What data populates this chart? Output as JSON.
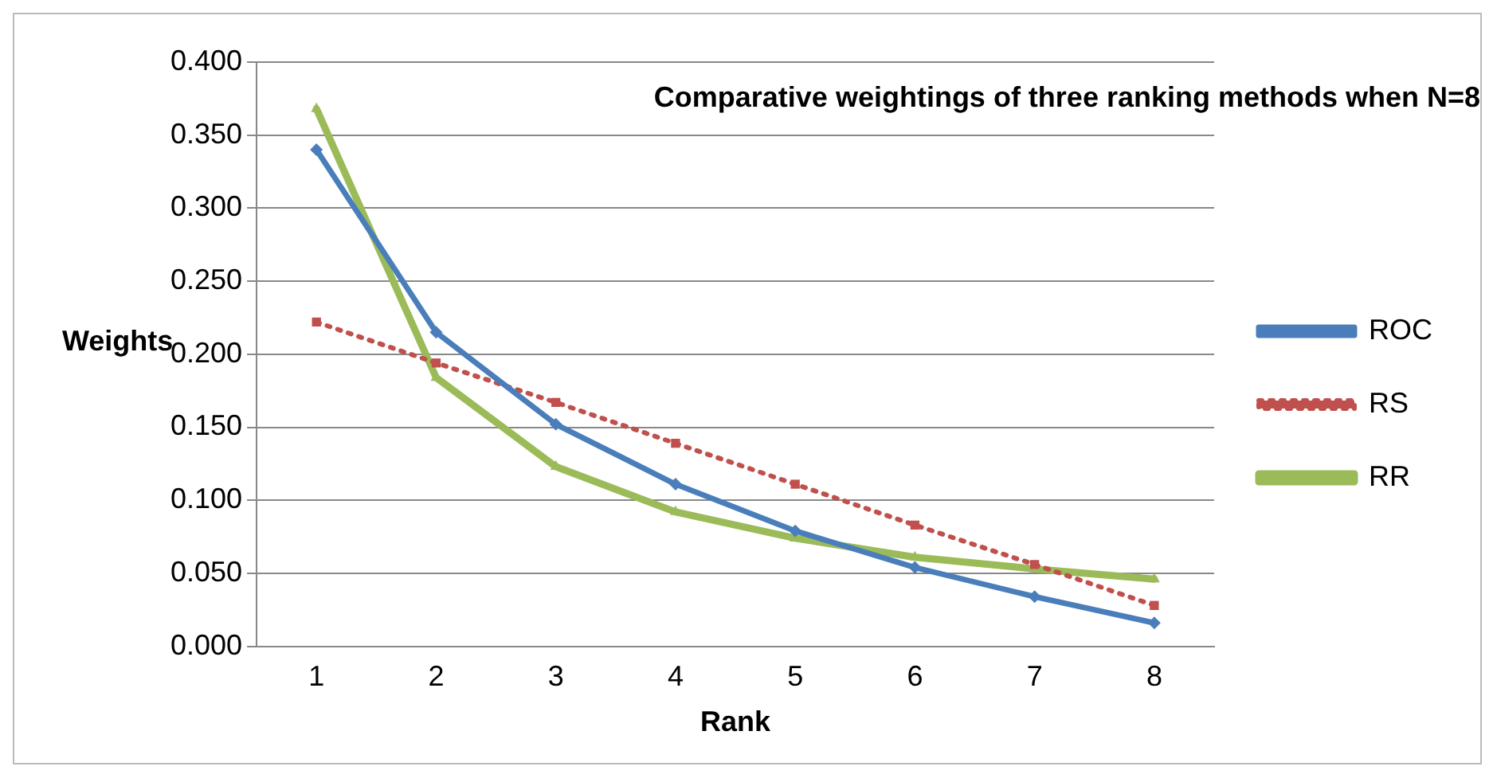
{
  "chart_data": {
    "type": "line",
    "title": "Comparative weightings of three ranking methods when N=8",
    "xlabel": "Rank",
    "ylabel": "Weights",
    "categories": [
      "1",
      "2",
      "3",
      "4",
      "5",
      "6",
      "7",
      "8"
    ],
    "series": [
      {
        "name": "ROC",
        "color": "#4a7ebb",
        "marker": "diamond",
        "line_style": "solid",
        "values": [
          0.34,
          0.215,
          0.152,
          0.111,
          0.079,
          0.054,
          0.034,
          0.016
        ]
      },
      {
        "name": "RS",
        "color": "#c0504d",
        "marker": "square",
        "line_style": "dotted",
        "values": [
          0.222,
          0.194,
          0.167,
          0.139,
          0.111,
          0.083,
          0.056,
          0.028
        ]
      },
      {
        "name": "RR",
        "color": "#9bbb59",
        "marker": "triangle",
        "line_style": "solid",
        "values": [
          0.368,
          0.184,
          0.123,
          0.092,
          0.074,
          0.061,
          0.053,
          0.046
        ]
      }
    ],
    "ylim": [
      0,
      0.4
    ],
    "yticks": [
      {
        "value": 0,
        "label": "0.000"
      },
      {
        "value": 0.05,
        "label": "0.050"
      },
      {
        "value": 0.1,
        "label": "0.100"
      },
      {
        "value": 0.15,
        "label": "0.150"
      },
      {
        "value": 0.2,
        "label": "0.200"
      },
      {
        "value": 0.25,
        "label": "0.250"
      },
      {
        "value": 0.3,
        "label": "0.300"
      },
      {
        "value": 0.35,
        "label": "0.350"
      },
      {
        "value": 0.4,
        "label": "0.400"
      }
    ],
    "grid": "y",
    "legend": "right"
  }
}
